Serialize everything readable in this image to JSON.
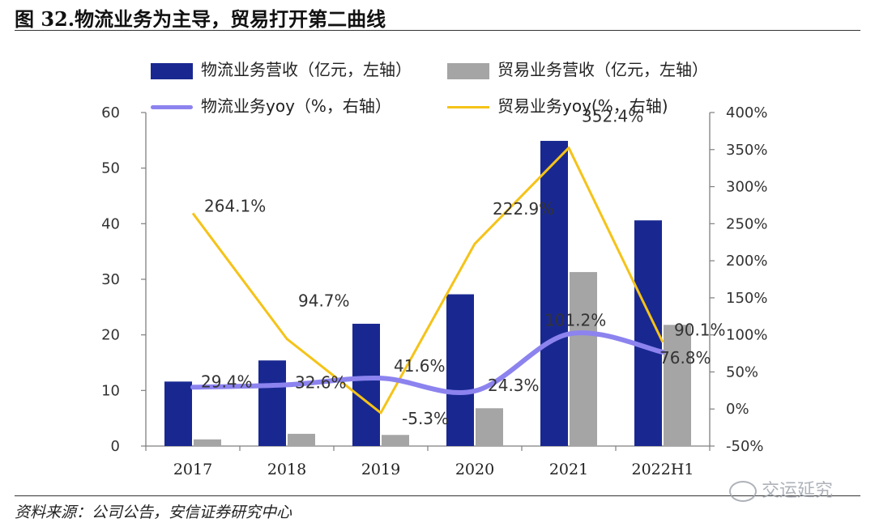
{
  "figure_title": "图 32.物流业务为主导，贸易打开第二曲线",
  "source": "资料来源：公司公告，安信证券研究中心",
  "watermark": "交运延究",
  "colors": {
    "logistics_bar": "#192891",
    "trade_bar": "#a5a5a5",
    "logistics_yoy_line": "#8c83ef",
    "trade_yoy_line": "#f5c318"
  },
  "chart_data": {
    "type": "bar",
    "categories": [
      "2017",
      "2018",
      "2019",
      "2020",
      "2021",
      "2022H1"
    ],
    "series": [
      {
        "name": "物流业务营收（亿元，左轴）",
        "type": "bar",
        "axis": "left",
        "values": [
          11.6,
          15.4,
          22.0,
          27.3,
          54.9,
          40.6
        ]
      },
      {
        "name": "贸易业务营收（亿元，左轴）",
        "type": "bar",
        "axis": "left",
        "values": [
          1.2,
          2.2,
          2.0,
          6.8,
          31.3,
          21.8
        ]
      },
      {
        "name": "物流业务yoy（%，右轴）",
        "type": "line",
        "axis": "right",
        "values": [
          29.4,
          32.6,
          41.6,
          24.3,
          101.2,
          76.8
        ],
        "labels": [
          "29.4%",
          "32.6%",
          "41.6%",
          "24.3%",
          "101.2%",
          "76.8%"
        ]
      },
      {
        "name": "贸易业务yoy(%，右轴)",
        "type": "line",
        "axis": "right",
        "values": [
          264.1,
          94.7,
          -5.3,
          222.9,
          352.4,
          90.1
        ],
        "labels": [
          "264.1%",
          "94.7%",
          "-5.3%",
          "222.9%",
          "352.4%",
          "90.1%"
        ]
      }
    ],
    "left_axis": {
      "ylim": [
        0,
        60
      ],
      "ticks": [
        "0",
        "10",
        "20",
        "30",
        "40",
        "50",
        "60"
      ]
    },
    "right_axis": {
      "ylim": [
        -50,
        400
      ],
      "ticks": [
        "-50%",
        "0%",
        "50%",
        "100%",
        "150%",
        "200%",
        "250%",
        "300%",
        "350%",
        "400%"
      ]
    },
    "grid": false,
    "legend_position": "top"
  }
}
